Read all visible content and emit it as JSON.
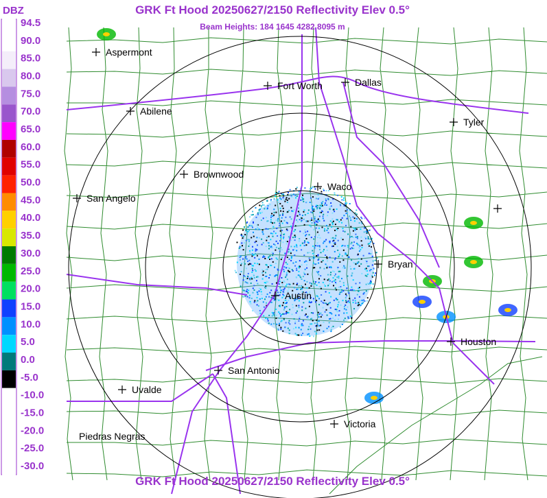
{
  "header": {
    "title": "GRK Ft Hood 20250627/2150 Reflectivity Elev 0.5°",
    "subtitle": "Beam Heights: 184 1645 4282 8095 m"
  },
  "legend": {
    "unit": "DBZ",
    "labels": [
      "94.5",
      "90.0",
      "85.0",
      "80.0",
      "75.0",
      "70.0",
      "65.0",
      "60.0",
      "55.0",
      "50.0",
      "45.0",
      "40.0",
      "35.0",
      "30.0",
      "25.0",
      "20.0",
      "15.0",
      "10.0",
      "5.0",
      "0.0",
      "-5.0",
      "-10.0",
      "-15.0",
      "-20.0",
      "-25.0",
      "-30.0"
    ],
    "colors": [
      "#ffffff",
      "#ffffff",
      "#f4eefa",
      "#d9c8ee",
      "#b58ee0",
      "#9955cc",
      "#ff00ff",
      "#b00000",
      "#e00000",
      "#ff2000",
      "#ff8c00",
      "#ffd000",
      "#d8e800",
      "#007a00",
      "#00b800",
      "#00e060",
      "#1040ff",
      "#0090ff",
      "#00d8ff",
      "#007a7a",
      "#000000",
      "#ffffff",
      "#ffffff",
      "#ffffff",
      "#ffffff",
      "#ffffff"
    ]
  },
  "cities": [
    "Aspermont",
    "Fort Worth",
    "Dallas",
    "Abilene",
    "Tyler",
    "Brownwood",
    "Waco",
    "San Angelo",
    "Bryan",
    "Austin",
    "Houston",
    "San Antonio",
    "Uvalde",
    "Victoria",
    "Piedras Negras"
  ],
  "footer": {
    "title": "GRK Ft Hood 20250627/2150 Reflectivity Elev 0.5°"
  }
}
